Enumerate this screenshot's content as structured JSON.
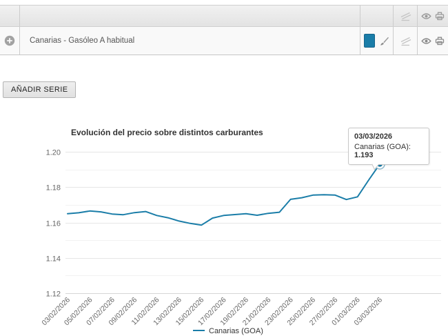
{
  "series_row": {
    "label": "Canarias - Gasóleo A habitual",
    "swatch_color": "#1a7da8"
  },
  "buttons": {
    "add_series": "AÑADIR SERIE"
  },
  "tooltip": {
    "date": "03/03/2026",
    "series_label": "Canarias (GOA):",
    "value": "1.193"
  },
  "colors": {
    "accent_blue": "#1a7da8",
    "grid_major": "#e6e6e6",
    "grid_minor": "#f2f2f2",
    "axis_text": "#666666",
    "title_text": "#333333"
  },
  "icons": {
    "row_header": [
      "trend-lines-icon",
      "eye-icon",
      "print-icon"
    ],
    "series_row": [
      "plus-circle-icon",
      "color-swatch",
      "brush-icon",
      "trend-lines-icon",
      "eye-icon",
      "print-icon"
    ]
  },
  "chart_data": {
    "type": "line",
    "title": "Evolución del precio sobre distintos carburantes",
    "xlabel": "",
    "ylabel": "",
    "ylim": [
      1.12,
      1.2
    ],
    "yticks": [
      1.12,
      1.14,
      1.16,
      1.18,
      1.2
    ],
    "grid": true,
    "legend_position": "bottom",
    "xtick_step": 2,
    "x": [
      "03/02/2026",
      "04/02/2026",
      "05/02/2026",
      "06/02/2026",
      "07/02/2026",
      "08/02/2026",
      "09/02/2026",
      "10/02/2026",
      "11/02/2026",
      "12/02/2026",
      "13/02/2026",
      "14/02/2026",
      "15/02/2026",
      "16/02/2026",
      "17/02/2026",
      "18/02/2026",
      "19/02/2026",
      "20/02/2026",
      "21/02/2026",
      "22/02/2026",
      "23/02/2026",
      "24/02/2026",
      "25/02/2026",
      "26/02/2026",
      "27/02/2026",
      "28/02/2026",
      "01/03/2026",
      "02/03/2026",
      "03/03/2026"
    ],
    "series": [
      {
        "name": "Canarias (GOA)",
        "color": "#1a7da8",
        "values": [
          1.165,
          1.1655,
          1.1665,
          1.166,
          1.1648,
          1.1644,
          1.1656,
          1.1662,
          1.164,
          1.1627,
          1.1608,
          1.1595,
          1.1585,
          1.1625,
          1.164,
          1.1645,
          1.165,
          1.1641,
          1.1652,
          1.1658,
          1.1731,
          1.174,
          1.1755,
          1.1757,
          1.1755,
          1.173,
          1.1745,
          1.184,
          1.193
        ]
      }
    ],
    "last_point": {
      "x": "03/03/2026",
      "value": 1.193
    }
  }
}
